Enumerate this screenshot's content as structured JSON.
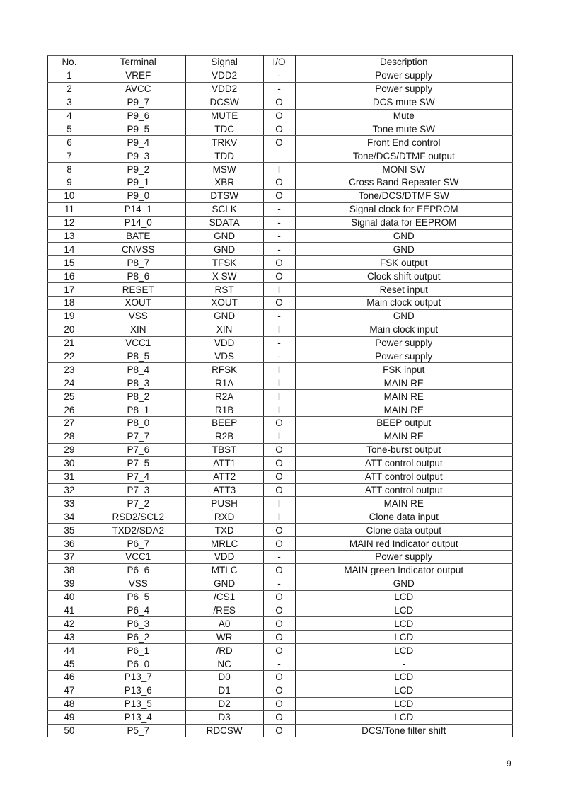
{
  "table": {
    "headers": [
      "No.",
      "Terminal",
      "Signal",
      "I/O",
      "Description"
    ],
    "rows": [
      [
        "1",
        "VREF",
        "VDD2",
        "-",
        "Power supply"
      ],
      [
        "2",
        "AVCC",
        "VDD2",
        "-",
        "Power supply"
      ],
      [
        "3",
        "P9_7",
        "DCSW",
        "O",
        "DCS mute SW"
      ],
      [
        "4",
        "P9_6",
        "MUTE",
        "O",
        "Mute"
      ],
      [
        "5",
        "P9_5",
        "TDC",
        "O",
        "Tone mute SW"
      ],
      [
        "6",
        "P9_4",
        "TRKV",
        "O",
        "Front End control"
      ],
      [
        "7",
        "P9_3",
        "TDD",
        "",
        "Tone/DCS/DTMF output"
      ],
      [
        "8",
        "P9_2",
        "MSW",
        "I",
        "MONI SW"
      ],
      [
        "9",
        "P9_1",
        "XBR",
        "O",
        "Cross Band Repeater SW"
      ],
      [
        "10",
        "P9_0",
        "DTSW",
        "O",
        "Tone/DCS/DTMF SW"
      ],
      [
        "11",
        "P14_1",
        "SCLK",
        "-",
        "Signal clock for EEPROM"
      ],
      [
        "12",
        "P14_0",
        "SDATA",
        "-",
        "Signal data for EEPROM"
      ],
      [
        "13",
        "BATE",
        "GND",
        "-",
        "GND"
      ],
      [
        "14",
        "CNVSS",
        "GND",
        "-",
        "GND"
      ],
      [
        "15",
        "P8_7",
        "TFSK",
        "O",
        "FSK output"
      ],
      [
        "16",
        "P8_6",
        "X SW",
        "O",
        "Clock shift output"
      ],
      [
        "17",
        "RESET",
        "RST",
        "I",
        "Reset input"
      ],
      [
        "18",
        "XOUT",
        "XOUT",
        "O",
        "Main clock output"
      ],
      [
        "19",
        "VSS",
        "GND",
        "-",
        "GND"
      ],
      [
        "20",
        "XIN",
        "XIN",
        "I",
        "Main clock input"
      ],
      [
        "21",
        "VCC1",
        "VDD",
        "-",
        "Power supply"
      ],
      [
        "22",
        "P8_5",
        "VDS",
        "-",
        "Power supply"
      ],
      [
        "23",
        "P8_4",
        "RFSK",
        "I",
        "FSK input"
      ],
      [
        "24",
        "P8_3",
        "R1A",
        "I",
        "MAIN RE"
      ],
      [
        "25",
        "P8_2",
        "R2A",
        "I",
        "MAIN RE"
      ],
      [
        "26",
        "P8_1",
        "R1B",
        "I",
        "MAIN RE"
      ],
      [
        "27",
        "P8_0",
        "BEEP",
        "O",
        "BEEP output"
      ],
      [
        "28",
        "P7_7",
        "R2B",
        "I",
        "MAIN RE"
      ],
      [
        "29",
        "P7_6",
        "TBST",
        "O",
        "Tone-burst output"
      ],
      [
        "30",
        "P7_5",
        "ATT1",
        "O",
        "ATT control output"
      ],
      [
        "31",
        "P7_4",
        "ATT2",
        "O",
        "ATT control output"
      ],
      [
        "32",
        "P7_3",
        "ATT3",
        "O",
        "ATT control output"
      ],
      [
        "33",
        "P7_2",
        "PUSH",
        "I",
        "MAIN RE"
      ],
      [
        "34",
        "RSD2/SCL2",
        "RXD",
        "I",
        "Clone data input"
      ],
      [
        "35",
        "TXD2/SDA2",
        "TXD",
        "O",
        "Clone data output"
      ],
      [
        "36",
        "P6_7",
        "MRLC",
        "O",
        "MAIN red Indicator output"
      ],
      [
        "37",
        "VCC1",
        "VDD",
        "-",
        "Power supply"
      ],
      [
        "38",
        "P6_6",
        "MTLC",
        "O",
        "MAIN green Indicator output"
      ],
      [
        "39",
        "VSS",
        "GND",
        "-",
        "GND"
      ],
      [
        "40",
        "P6_5",
        "/CS1",
        "O",
        "LCD"
      ],
      [
        "41",
        "P6_4",
        "/RES",
        "O",
        "LCD"
      ],
      [
        "42",
        "P6_3",
        "A0",
        "O",
        "LCD"
      ],
      [
        "43",
        "P6_2",
        "WR",
        "O",
        "LCD"
      ],
      [
        "44",
        "P6_1",
        "/RD",
        "O",
        "LCD"
      ],
      [
        "45",
        "P6_0",
        "NC",
        "-",
        "-"
      ],
      [
        "46",
        "P13_7",
        "D0",
        "O",
        "LCD"
      ],
      [
        "47",
        "P13_6",
        "D1",
        "O",
        "LCD"
      ],
      [
        "48",
        "P13_5",
        "D2",
        "O",
        "LCD"
      ],
      [
        "49",
        "P13_4",
        "D3",
        "O",
        "LCD"
      ],
      [
        "50",
        "P5_7",
        "RDCSW",
        "O",
        "DCS/Tone filter shift"
      ]
    ]
  },
  "page_number": "9"
}
